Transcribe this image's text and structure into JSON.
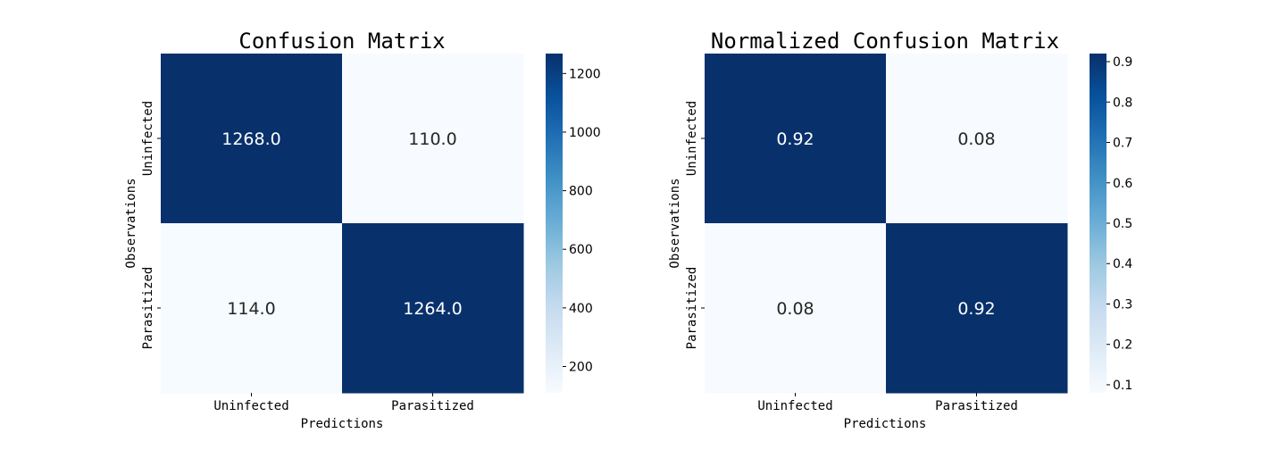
{
  "chart_data": [
    {
      "type": "heatmap",
      "title": "Confusion Matrix",
      "xlabel": "Predictions",
      "ylabel": "Observations",
      "x_categories": [
        "Uninfected",
        "Parasitized"
      ],
      "y_categories": [
        "Uninfected",
        "Parasitized"
      ],
      "values": [
        [
          1268.0,
          110.0
        ],
        [
          114.0,
          1264.0
        ]
      ],
      "cell_labels": [
        [
          "1268.0",
          "110.0"
        ],
        [
          "114.0",
          "1264.0"
        ]
      ],
      "colormap": "Blues",
      "colorbar_range": [
        110,
        1268
      ],
      "colorbar_ticks": [
        200,
        400,
        600,
        800,
        1000,
        1200
      ],
      "colorbar_tick_labels": [
        "200",
        "400",
        "600",
        "800",
        "1000",
        "1200"
      ]
    },
    {
      "type": "heatmap",
      "title": "Normalized Confusion Matrix",
      "xlabel": "Predictions",
      "ylabel": "Observations",
      "x_categories": [
        "Uninfected",
        "Parasitized"
      ],
      "y_categories": [
        "Uninfected",
        "Parasitized"
      ],
      "values": [
        [
          0.92,
          0.08
        ],
        [
          0.08,
          0.92
        ]
      ],
      "cell_labels": [
        [
          "0.92",
          "0.08"
        ],
        [
          "0.08",
          "0.92"
        ]
      ],
      "colormap": "Blues",
      "colorbar_range": [
        0.08,
        0.92
      ],
      "colorbar_ticks": [
        0.1,
        0.2,
        0.3,
        0.4,
        0.5,
        0.6,
        0.7,
        0.8,
        0.9
      ],
      "colorbar_tick_labels": [
        "0.1",
        "0.2",
        "0.3",
        "0.4",
        "0.5",
        "0.6",
        "0.7",
        "0.8",
        "0.9"
      ]
    }
  ],
  "colors": {
    "cmap_low": "#f7fbff",
    "cmap_high": "#08306b",
    "text_dark": "#262626",
    "text_light": "#ffffff"
  }
}
